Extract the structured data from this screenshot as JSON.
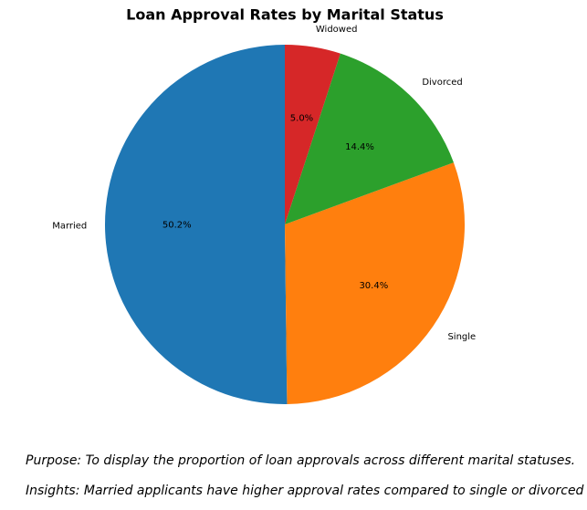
{
  "chart_data": {
    "type": "pie",
    "title": "Loan Approval Rates by Marital Status",
    "categories": [
      "Married",
      "Single",
      "Divorced",
      "Widowed"
    ],
    "values": [
      50.2,
      30.4,
      14.4,
      5.0
    ],
    "value_labels": [
      "50.2%",
      "30.4%",
      "14.4%",
      "5.0%"
    ],
    "colors": [
      "#1f77b4",
      "#ff7f0e",
      "#2ca02c",
      "#d62728"
    ]
  },
  "notes": [
    "Purpose: To display the proportion of loan approvals across different marital statuses.",
    "Insights: Married applicants have higher approval rates compared to single or divorced applicants."
  ]
}
